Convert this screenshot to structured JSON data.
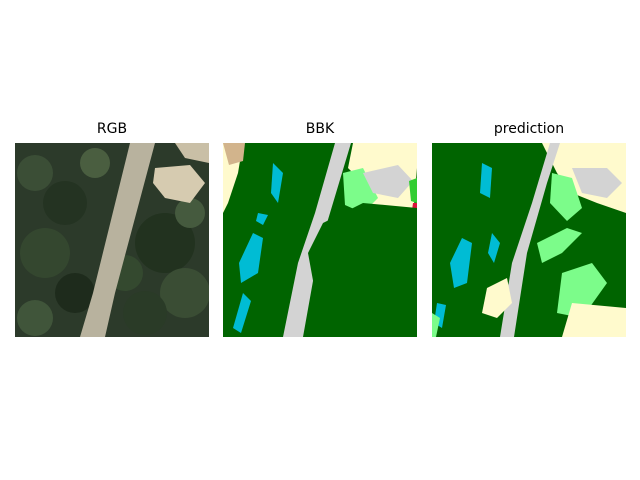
{
  "panels": [
    {
      "title": "RGB"
    },
    {
      "title": "BBK"
    },
    {
      "title": "prediction"
    }
  ],
  "class_colors": {
    "forest": "#006400",
    "road": "#d3d3d3",
    "water": "#00bcd4",
    "open_land": "#fffacd",
    "meadow": "#7cfc8a",
    "bare_soil": "#d2b48c",
    "bright_green": "#32cd32",
    "red": "#dc143c"
  }
}
